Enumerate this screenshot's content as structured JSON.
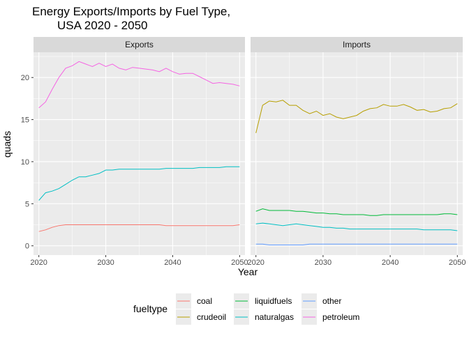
{
  "chart_data": {
    "type": "line",
    "title_lines": [
      "Energy Exports/Imports by Fuel Type,",
      "USA 2020 - 2050"
    ],
    "xlabel": "Year",
    "ylabel": "quads",
    "x_ticks": [
      2020,
      2030,
      2040,
      2050
    ],
    "y_ticks": [
      0,
      5,
      10,
      15,
      20
    ],
    "xlim": [
      2019.2,
      2050.8
    ],
    "ylim": [
      -1.1,
      23.0
    ],
    "grid": true,
    "legend_placement": "bottom",
    "legend_title": "fueltype",
    "colors": {
      "coal": "#F8766D",
      "crudeoil": "#B79F00",
      "liquidfuels": "#00BA38",
      "naturalgas": "#00BFC4",
      "other": "#619CFF",
      "petroleum": "#F564E3"
    },
    "legend_order": [
      "coal",
      "crudeoil",
      "liquidfuels",
      "naturalgas",
      "other",
      "petroleum"
    ],
    "x": [
      2020,
      2021,
      2022,
      2023,
      2024,
      2025,
      2026,
      2027,
      2028,
      2029,
      2030,
      2031,
      2032,
      2033,
      2034,
      2035,
      2036,
      2037,
      2038,
      2039,
      2040,
      2041,
      2042,
      2043,
      2044,
      2045,
      2046,
      2047,
      2048,
      2049,
      2050
    ],
    "panels": [
      {
        "name": "Exports",
        "series": [
          {
            "name": "petroleum",
            "values": [
              16.4,
              17.1,
              18.6,
              20.0,
              21.1,
              21.4,
              21.9,
              21.6,
              21.3,
              21.7,
              21.3,
              21.6,
              21.1,
              20.9,
              21.2,
              21.1,
              21.0,
              20.9,
              20.7,
              21.1,
              20.7,
              20.4,
              20.5,
              20.5,
              20.1,
              19.7,
              19.3,
              19.4,
              19.3,
              19.2,
              19.0
            ]
          },
          {
            "name": "naturalgas",
            "values": [
              5.4,
              6.3,
              6.5,
              6.8,
              7.3,
              7.8,
              8.2,
              8.2,
              8.4,
              8.6,
              9.0,
              9.0,
              9.1,
              9.1,
              9.1,
              9.1,
              9.1,
              9.1,
              9.1,
              9.2,
              9.2,
              9.2,
              9.2,
              9.2,
              9.3,
              9.3,
              9.3,
              9.3,
              9.4,
              9.4,
              9.4
            ]
          },
          {
            "name": "coal",
            "values": [
              1.7,
              1.9,
              2.2,
              2.4,
              2.5,
              2.5,
              2.5,
              2.5,
              2.5,
              2.5,
              2.5,
              2.5,
              2.5,
              2.5,
              2.5,
              2.5,
              2.5,
              2.5,
              2.5,
              2.4,
              2.4,
              2.4,
              2.4,
              2.4,
              2.4,
              2.4,
              2.4,
              2.4,
              2.4,
              2.4,
              2.5
            ]
          }
        ]
      },
      {
        "name": "Imports",
        "series": [
          {
            "name": "crudeoil",
            "values": [
              13.4,
              16.7,
              17.2,
              17.1,
              17.3,
              16.7,
              16.7,
              16.1,
              15.7,
              16.0,
              15.5,
              15.7,
              15.3,
              15.1,
              15.3,
              15.5,
              16.0,
              16.3,
              16.4,
              16.8,
              16.6,
              16.6,
              16.8,
              16.5,
              16.1,
              16.2,
              15.9,
              16.0,
              16.3,
              16.4,
              16.9
            ]
          },
          {
            "name": "liquidfuels",
            "values": [
              4.1,
              4.4,
              4.2,
              4.2,
              4.2,
              4.2,
              4.1,
              4.1,
              4.0,
              3.9,
              3.9,
              3.8,
              3.8,
              3.7,
              3.7,
              3.7,
              3.7,
              3.6,
              3.6,
              3.7,
              3.7,
              3.7,
              3.7,
              3.7,
              3.7,
              3.7,
              3.7,
              3.7,
              3.8,
              3.8,
              3.7
            ]
          },
          {
            "name": "naturalgas",
            "values": [
              2.6,
              2.7,
              2.6,
              2.5,
              2.4,
              2.5,
              2.6,
              2.5,
              2.4,
              2.3,
              2.2,
              2.2,
              2.1,
              2.1,
              2.0,
              2.0,
              2.0,
              2.0,
              2.0,
              2.0,
              2.0,
              2.0,
              2.0,
              2.0,
              2.0,
              1.9,
              1.9,
              1.9,
              1.9,
              1.9,
              1.8
            ]
          },
          {
            "name": "other",
            "values": [
              0.2,
              0.2,
              0.1,
              0.1,
              0.1,
              0.1,
              0.1,
              0.1,
              0.2,
              0.2,
              0.2,
              0.2,
              0.2,
              0.2,
              0.2,
              0.2,
              0.2,
              0.2,
              0.2,
              0.2,
              0.2,
              0.2,
              0.2,
              0.2,
              0.2,
              0.2,
              0.2,
              0.2,
              0.2,
              0.2,
              0.2
            ]
          }
        ]
      }
    ]
  }
}
